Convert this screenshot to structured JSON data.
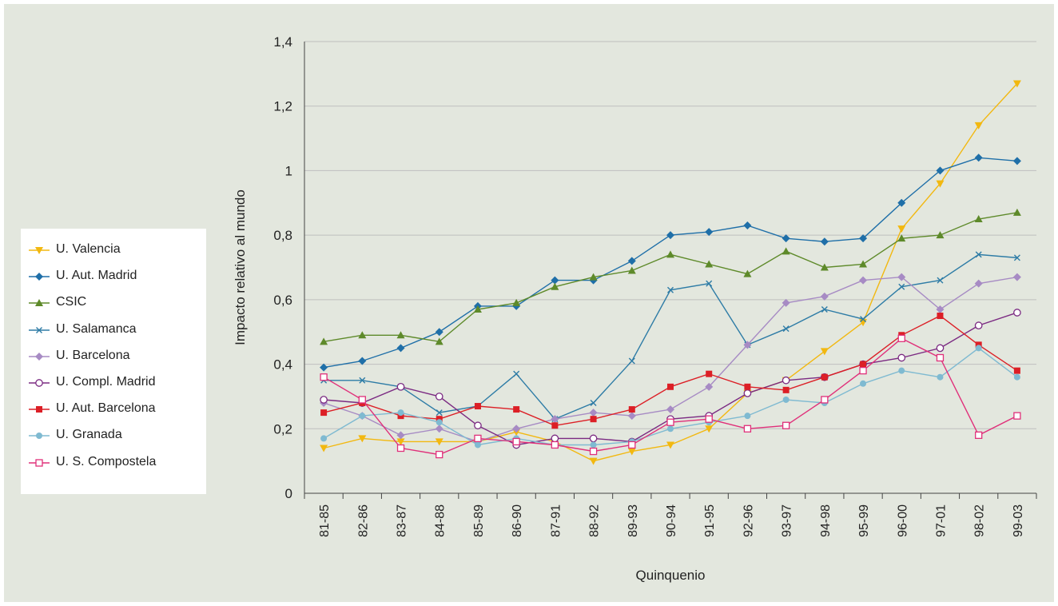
{
  "chart_data": {
    "type": "line",
    "xlabel": "Quinquenio",
    "ylabel": "Impacto relativo al mundo",
    "ylim": [
      0,
      1.4
    ],
    "yticks": [
      "0",
      "0,2",
      "0,4",
      "0,6",
      "0,8",
      "1",
      "1,2",
      "1,4"
    ],
    "grid": "horizontal",
    "legend_position": "left",
    "categories": [
      "81-85",
      "82-86",
      "83-87",
      "84-88",
      "85-89",
      "86-90",
      "87-91",
      "88-92",
      "89-93",
      "90-94",
      "91-95",
      "92-96",
      "93-97",
      "94-98",
      "95-99",
      "96-00",
      "97-01",
      "98-02",
      "99-03"
    ],
    "series": [
      {
        "name": "U. Valencia",
        "color": "#f2b810",
        "marker": "triangle-down",
        "values": [
          0.14,
          0.17,
          0.16,
          0.16,
          0.16,
          0.19,
          0.16,
          0.1,
          0.13,
          0.15,
          0.2,
          0.31,
          0.35,
          0.44,
          0.53,
          0.82,
          0.96,
          1.14,
          1.27
        ]
      },
      {
        "name": "U. Aut. Madrid",
        "color": "#1f6fa8",
        "marker": "diamond",
        "values": [
          0.39,
          0.41,
          0.45,
          0.5,
          0.58,
          0.58,
          0.66,
          0.66,
          0.72,
          0.8,
          0.81,
          0.83,
          0.79,
          0.78,
          0.79,
          0.9,
          1.0,
          1.04,
          1.03
        ]
      },
      {
        "name": "CSIC",
        "color": "#5e8a2a",
        "marker": "triangle-up",
        "values": [
          0.47,
          0.49,
          0.49,
          0.47,
          0.57,
          0.59,
          0.64,
          0.67,
          0.69,
          0.74,
          0.71,
          0.68,
          0.75,
          0.7,
          0.71,
          0.79,
          0.8,
          0.85,
          0.87
        ]
      },
      {
        "name": "U. Salamanca",
        "color": "#2e7ca6",
        "marker": "x",
        "values": [
          0.35,
          0.35,
          0.33,
          0.25,
          0.27,
          0.37,
          0.23,
          0.28,
          0.41,
          0.63,
          0.65,
          0.46,
          0.51,
          0.57,
          0.54,
          0.64,
          0.66,
          0.74,
          0.73
        ]
      },
      {
        "name": "U. Barcelona",
        "color": "#a78bc4",
        "marker": "diamond",
        "values": [
          0.28,
          0.24,
          0.18,
          0.2,
          0.16,
          0.2,
          0.23,
          0.25,
          0.24,
          0.26,
          0.33,
          0.46,
          0.59,
          0.61,
          0.66,
          0.67,
          0.57,
          0.65,
          0.67
        ]
      },
      {
        "name": "U. Compl. Madrid",
        "color": "#7b2a82",
        "marker": "circle-open",
        "values": [
          0.29,
          0.28,
          0.33,
          0.3,
          0.21,
          0.15,
          0.17,
          0.17,
          0.16,
          0.23,
          0.24,
          0.31,
          0.35,
          0.36,
          0.4,
          0.42,
          0.45,
          0.52,
          0.56
        ]
      },
      {
        "name": "U. Aut. Barcelona",
        "color": "#dc1f26",
        "marker": "square",
        "values": [
          0.25,
          0.28,
          0.24,
          0.23,
          0.27,
          0.26,
          0.21,
          0.23,
          0.26,
          0.33,
          0.37,
          0.33,
          0.32,
          0.36,
          0.4,
          0.49,
          0.55,
          0.46,
          0.38
        ]
      },
      {
        "name": "U. Granada",
        "color": "#7fbad1",
        "marker": "circle",
        "values": [
          0.17,
          0.24,
          0.25,
          0.22,
          0.15,
          0.17,
          0.15,
          0.15,
          0.16,
          0.2,
          0.22,
          0.24,
          0.29,
          0.28,
          0.34,
          0.38,
          0.36,
          0.45,
          0.36
        ]
      },
      {
        "name": "U. S. Compostela",
        "color": "#e0307a",
        "marker": "square-open",
        "values": [
          0.36,
          0.29,
          0.14,
          0.12,
          0.17,
          0.16,
          0.15,
          0.13,
          0.15,
          0.22,
          0.23,
          0.2,
          0.21,
          0.29,
          0.38,
          0.48,
          0.42,
          0.18,
          0.24
        ]
      }
    ]
  }
}
